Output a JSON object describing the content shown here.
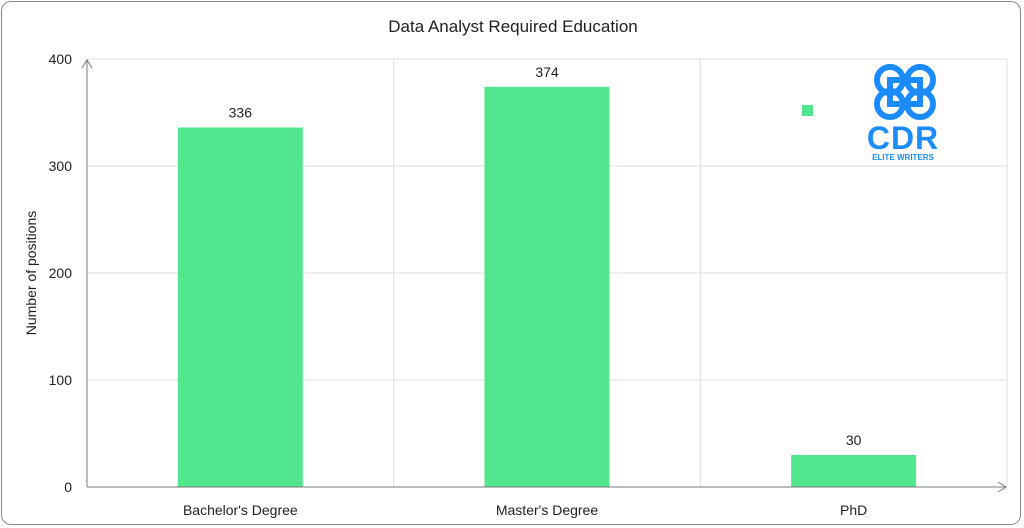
{
  "chart_data": {
    "type": "bar",
    "title": "Data Analyst Required Education",
    "xlabel": "",
    "ylabel": "Number of positions",
    "categories": [
      "Bachelor's Degree",
      "Master's Degree",
      "PhD"
    ],
    "values": [
      336,
      374,
      30
    ],
    "ylim": [
      0,
      400
    ],
    "yticks": [
      0,
      100,
      200,
      300,
      400
    ],
    "bar_color": "#52e68e",
    "grid": true,
    "legend": {
      "placement": "top-right",
      "entries": [
        ""
      ]
    }
  },
  "logo": {
    "text": "CDR",
    "subtext": "ELITE WRITERS",
    "color": "#1a8cff"
  }
}
